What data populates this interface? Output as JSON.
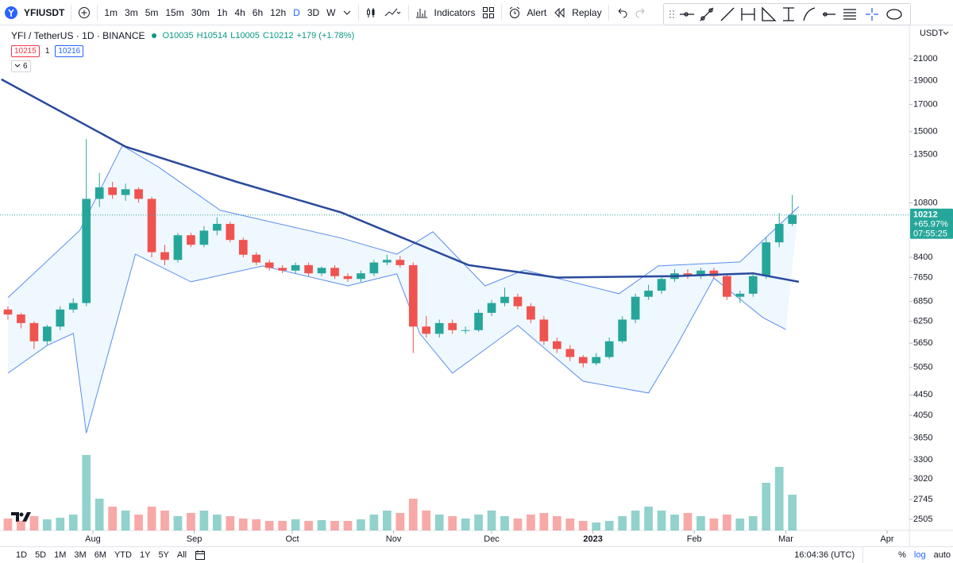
{
  "toolbar": {
    "symbol": "YFIUSDT",
    "intervals": [
      "1m",
      "3m",
      "5m",
      "15m",
      "30m",
      "1h",
      "4h",
      "6h",
      "12h",
      "D",
      "3D",
      "W"
    ],
    "indicators": "Indicators",
    "alert": "Alert",
    "replay": "Replay"
  },
  "legend": {
    "instrument": "YFI / TetherUS · 1D · BINANCE",
    "ohlc": [
      "O10035",
      "H10514",
      "L10005",
      "C10212",
      "+179 (+1.78%)"
    ],
    "sell": "10215",
    "spread": "1",
    "buy": "10216",
    "indicators_count": "6"
  },
  "price_axis": {
    "currency": "USDT"
  },
  "price_label": {
    "change": "+65.97%",
    "countdown": "07:55:25"
  },
  "chart_data": {
    "type": "candlestick",
    "log": true,
    "grid": false,
    "up_color": "#26a69a",
    "down_color": "#ef5350",
    "x": [
      5,
      9,
      13,
      17,
      21,
      25,
      29,
      33,
      37,
      41,
      45,
      49,
      53,
      57,
      61,
      65,
      69,
      73,
      77,
      81,
      85,
      89,
      93,
      97,
      101,
      105,
      109,
      113,
      117,
      121,
      125,
      129,
      133,
      137,
      141,
      145,
      149,
      153,
      157,
      161,
      165,
      169,
      173,
      177,
      181,
      185,
      189,
      193,
      197,
      201,
      205,
      209,
      213,
      217,
      221,
      225,
      229,
      233,
      237,
      241,
      245
    ],
    "open": [
      6600,
      6450,
      6200,
      5700,
      6100,
      6600,
      6800,
      11000,
      11600,
      11200,
      11500,
      11000,
      8600,
      8300,
      9300,
      8900,
      9500,
      9800,
      9100,
      8500,
      8200,
      8000,
      7900,
      8100,
      7800,
      8000,
      7700,
      7600,
      7800,
      8200,
      8300,
      8100,
      6100,
      5900,
      6200,
      6000,
      6000,
      6500,
      6800,
      7000,
      6700,
      6300,
      5700,
      5500,
      5300,
      5150,
      5300,
      5700,
      6300,
      7000,
      7200,
      7600,
      7800,
      7700,
      7900,
      7700,
      7000,
      7100,
      7700,
      9000,
      9800
    ],
    "high": [
      6700,
      6500,
      6250,
      6150,
      6700,
      6950,
      14500,
      12400,
      11900,
      11800,
      11600,
      11100,
      8900,
      9400,
      9400,
      9700,
      10100,
      9900,
      9200,
      8600,
      8300,
      8100,
      8200,
      8200,
      8050,
      8100,
      7800,
      7900,
      8300,
      8500,
      8450,
      8200,
      6400,
      6300,
      6300,
      6100,
      6600,
      6900,
      7300,
      7100,
      6800,
      6400,
      5800,
      5600,
      5350,
      5400,
      5800,
      6400,
      7100,
      7400,
      7700,
      7950,
      7950,
      8000,
      8000,
      7800,
      7200,
      7800,
      9200,
      10300,
      11200
    ],
    "low": [
      6300,
      6050,
      5500,
      5600,
      6000,
      6500,
      6700,
      10600,
      11000,
      10900,
      10800,
      8400,
      8100,
      8200,
      8800,
      8800,
      9300,
      9000,
      8400,
      8100,
      7900,
      7800,
      7800,
      7700,
      7700,
      7600,
      7500,
      7500,
      7700,
      8100,
      8000,
      5400,
      5800,
      5800,
      5900,
      5900,
      5950,
      6400,
      6700,
      6600,
      6200,
      5600,
      5400,
      5200,
      5050,
      5100,
      5250,
      5650,
      6200,
      6900,
      7100,
      7500,
      7600,
      7600,
      7600,
      6900,
      6800,
      7000,
      7600,
      8800,
      9700
    ],
    "close": [
      6450,
      6200,
      5700,
      6100,
      6600,
      6800,
      11000,
      11600,
      11200,
      11500,
      11000,
      8600,
      8300,
      9300,
      8900,
      9500,
      9800,
      9100,
      8500,
      8200,
      8000,
      7900,
      8100,
      7800,
      8000,
      7700,
      7600,
      7800,
      8200,
      8300,
      8100,
      6100,
      5900,
      6200,
      6000,
      6000,
      6500,
      6800,
      7000,
      6700,
      6300,
      5700,
      5500,
      5300,
      5150,
      5300,
      5700,
      6300,
      7000,
      7200,
      7600,
      7800,
      7700,
      7900,
      7700,
      7000,
      7100,
      7700,
      9000,
      9800,
      10212
    ],
    "volume": [
      15,
      12,
      18,
      14,
      16,
      20,
      95,
      40,
      30,
      25,
      20,
      30,
      25,
      18,
      22,
      25,
      20,
      18,
      15,
      14,
      12,
      12,
      14,
      12,
      13,
      12,
      12,
      14,
      20,
      25,
      22,
      40,
      25,
      20,
      18,
      15,
      20,
      25,
      18,
      15,
      20,
      22,
      18,
      15,
      12,
      10,
      12,
      18,
      25,
      30,
      25,
      20,
      22,
      18,
      15,
      20,
      15,
      18,
      60,
      80,
      45
    ],
    "moving_average": {
      "color": "#2a4a9c",
      "x": [
        3,
        41,
        75,
        107,
        146,
        173,
        209,
        233,
        247
      ],
      "values": [
        19100,
        14000,
        11900,
        10330,
        8100,
        7650,
        7700,
        7800,
        7500
      ]
    },
    "band_upper": {
      "color": "#5b8def",
      "x": [
        5,
        27,
        40,
        51,
        70,
        107,
        124,
        135,
        151,
        163,
        192,
        204,
        229,
        247
      ],
      "values": [
        6970,
        9510,
        14070,
        12750,
        10430,
        9180,
        8520,
        9450,
        7360,
        7920,
        7100,
        8070,
        8220,
        10620
      ]
    },
    "band_lower": {
      "color": "#5b8def",
      "x": [
        5,
        17,
        25,
        29,
        44,
        61,
        83,
        109,
        124,
        131,
        141,
        161,
        181,
        201,
        209,
        221,
        236,
        243
      ],
      "values": [
        4920,
        5590,
        5910,
        3730,
        8520,
        7500,
        8070,
        7360,
        7780,
        5910,
        4920,
        6130,
        4740,
        4490,
        5490,
        7630,
        6360,
        6020
      ]
    },
    "xlim": [
      2.58,
      280.8
    ],
    "xticks": [
      {
        "value": 31,
        "label": "Aug"
      },
      {
        "value": 62,
        "label": "Sep"
      },
      {
        "value": 92,
        "label": "Oct"
      },
      {
        "value": 123,
        "label": "Nov"
      },
      {
        "value": 153,
        "label": "Dec"
      },
      {
        "value": 184,
        "label": "2023"
      },
      {
        "value": 215,
        "label": "Feb"
      },
      {
        "value": 243,
        "label": "Mar"
      },
      {
        "value": 274,
        "label": "Apr"
      }
    ],
    "ylim": [
      2380,
      24500
    ],
    "yticks": [
      21000,
      19000,
      17000,
      15000,
      13500,
      10800,
      8400,
      7650,
      6850,
      6250,
      5650,
      5050,
      4450,
      4050,
      3650,
      3300,
      3020,
      2745,
      2505
    ]
  },
  "bottom_bar": {
    "ranges": [
      "1D",
      "5D",
      "1M",
      "3M",
      "6M",
      "YTD",
      "1Y",
      "5Y",
      "All"
    ],
    "clock": "16:04:36 (UTC)",
    "percent": "%",
    "log": "log",
    "auto": "auto"
  }
}
